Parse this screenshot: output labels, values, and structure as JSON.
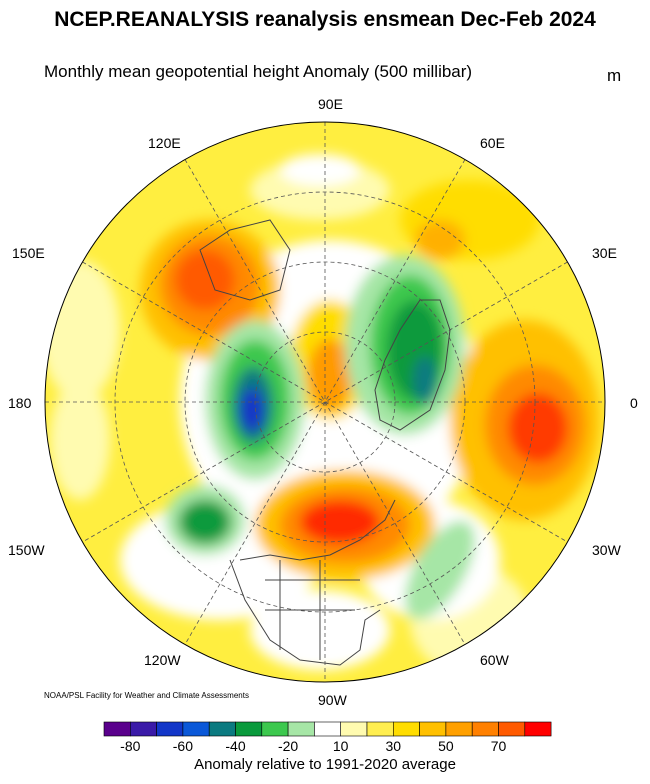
{
  "header": {
    "title": "NCEP.REANALYSIS reanalysis ensmean Dec-Feb 2024",
    "subtitle": "Monthly mean geopotential height Anomaly (500 millibar)",
    "unit": "m"
  },
  "map": {
    "projection": "north-polar-stereographic",
    "longitude_labels": {
      "top": "90E",
      "upper_left": "120E",
      "upper_right": "60E",
      "mid_left_upper": "150E",
      "mid_right_upper": "30E",
      "left": "180",
      "right": "0",
      "mid_left_lower": "150W",
      "mid_right_lower": "30W",
      "lower_left": "120W",
      "lower_right": "60W",
      "bottom": "90W"
    },
    "anomaly_centers": [
      {
        "sign": "positive",
        "level": "70+",
        "region": "Great Lakes / eastern North America",
        "color": "#ff2a00"
      },
      {
        "sign": "positive",
        "level": "50-70",
        "region": "Western Europe / Scandinavia",
        "color": "#ff4400"
      },
      {
        "sign": "positive",
        "level": "50-70",
        "region": "Eastern Siberia",
        "color": "#ff5500"
      },
      {
        "sign": "negative",
        "level": "-60 to -80",
        "region": "Alaska / Bering",
        "color": "#0a4ec8"
      },
      {
        "sign": "negative",
        "level": "-40 to -60",
        "region": "Barents-Kara / Arctic Russia",
        "color": "#0a7a3a"
      },
      {
        "sign": "negative",
        "level": "-40",
        "region": "North Pacific",
        "color": "#119944"
      },
      {
        "sign": "negative",
        "level": "-20",
        "region": "Western Atlantic",
        "color": "#8ee08e"
      }
    ]
  },
  "colorbar": {
    "colors": [
      "#5a008c",
      "#3a1aa8",
      "#1236c8",
      "#0b58d8",
      "#0b7a80",
      "#0a9a3c",
      "#3cc84e",
      "#a6e6a6",
      "#ffffff",
      "#fffbb0",
      "#ffee50",
      "#ffdd00",
      "#ffc000",
      "#ffa000",
      "#ff8000",
      "#ff5a00",
      "#ff0000"
    ],
    "tick_labels": [
      "-80",
      "-60",
      "-40",
      "-20",
      "10",
      "30",
      "50",
      "70"
    ],
    "caption": "Anomaly relative to 1991-2020 average"
  },
  "credit": "NOAA/PSL Facility for Weather and Climate Assessments"
}
